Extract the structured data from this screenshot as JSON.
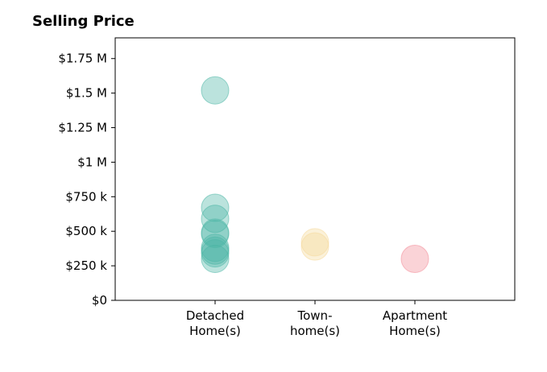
{
  "chart_data": {
    "type": "scatter",
    "title": "Selling Price",
    "xlabel": "",
    "ylabel": "",
    "categories": [
      {
        "lines": [
          "Detached",
          "Home(s)"
        ]
      },
      {
        "lines": [
          "Town-",
          "home(s)"
        ]
      },
      {
        "lines": [
          "Apartment",
          "Home(s)"
        ]
      }
    ],
    "xlim": [
      -1,
      3
    ],
    "ylim": [
      0,
      1900000
    ],
    "yticks": [
      {
        "value": 0,
        "label": "$0"
      },
      {
        "value": 250000,
        "label": "$250 k"
      },
      {
        "value": 500000,
        "label": "$500 k"
      },
      {
        "value": 750000,
        "label": "$750 k"
      },
      {
        "value": 1000000,
        "label": "$1 M"
      },
      {
        "value": 1250000,
        "label": "$1.25 M"
      },
      {
        "value": 1500000,
        "label": "$1.5 M"
      },
      {
        "value": 1750000,
        "label": "$1.75 M"
      }
    ],
    "grid": false,
    "legend": "none",
    "series": [
      {
        "category_index": 0,
        "color": "#4db6a6",
        "values": [
          1520000,
          670000,
          590000,
          490000,
          480000,
          380000,
          360000,
          340000,
          300000
        ]
      },
      {
        "category_index": 1,
        "color": "#f5d99b",
        "values": [
          420000,
          390000
        ]
      },
      {
        "category_index": 2,
        "color": "#f28b97",
        "values": [
          300000
        ]
      }
    ]
  }
}
